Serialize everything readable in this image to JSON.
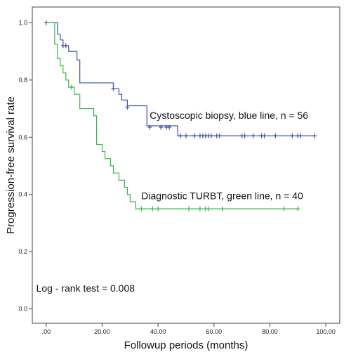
{
  "chart_data": {
    "type": "line",
    "title": "",
    "xlabel": "Followup periods (months)",
    "ylabel": "Progression-free survival rate",
    "xlim": [
      -5,
      105
    ],
    "ylim": [
      -0.05,
      1.055
    ],
    "x_ticks": [
      {
        "value": 0,
        "label": ".00"
      },
      {
        "value": 20,
        "label": "20.00"
      },
      {
        "value": 40,
        "label": "40.00"
      },
      {
        "value": 60,
        "label": "60.00"
      },
      {
        "value": 80,
        "label": "80.00"
      },
      {
        "value": 100,
        "label": "100.00"
      }
    ],
    "y_ticks": [
      {
        "value": 0,
        "label": "0.0"
      },
      {
        "value": 0.2,
        "label": "0.2"
      },
      {
        "value": 0.4,
        "label": "0.4"
      },
      {
        "value": 0.6,
        "label": "0.6"
      },
      {
        "value": 0.8,
        "label": "0.8"
      },
      {
        "value": 1.0,
        "label": "1.0"
      }
    ],
    "grid": false,
    "series": [
      {
        "color": "#3f51a5",
        "steps": [
          [
            0,
            1.0
          ],
          [
            4,
            0.96
          ],
          [
            5,
            0.94
          ],
          [
            6,
            0.92
          ],
          [
            8,
            0.9
          ],
          [
            11,
            0.87
          ],
          [
            12,
            0.79
          ],
          [
            24,
            0.77
          ],
          [
            26,
            0.75
          ],
          [
            27,
            0.73
          ],
          [
            29,
            0.71
          ],
          [
            36,
            0.64
          ],
          [
            47,
            0.605
          ],
          [
            96,
            0.605
          ]
        ],
        "censored": [
          [
            0,
            1.0
          ],
          [
            6,
            0.92
          ],
          [
            7,
            0.92
          ],
          [
            24,
            0.77
          ],
          [
            29,
            0.705
          ],
          [
            37,
            0.635
          ],
          [
            41,
            0.635
          ],
          [
            43,
            0.635
          ],
          [
            44,
            0.635
          ],
          [
            48,
            0.605
          ],
          [
            50,
            0.605
          ],
          [
            53,
            0.605
          ],
          [
            55,
            0.605
          ],
          [
            56,
            0.605
          ],
          [
            57,
            0.605
          ],
          [
            58,
            0.605
          ],
          [
            59,
            0.605
          ],
          [
            61,
            0.605
          ],
          [
            62,
            0.605
          ],
          [
            70,
            0.605
          ],
          [
            71,
            0.605
          ],
          [
            74,
            0.605
          ],
          [
            77,
            0.605
          ],
          [
            78,
            0.605
          ],
          [
            82,
            0.605
          ],
          [
            88,
            0.605
          ],
          [
            90,
            0.605
          ],
          [
            91,
            0.605
          ],
          [
            96,
            0.605
          ]
        ]
      },
      {
        "color": "#3bb34a",
        "steps": [
          [
            0,
            1.0
          ],
          [
            3,
            0.925
          ],
          [
            4,
            0.875
          ],
          [
            5,
            0.85
          ],
          [
            6,
            0.825
          ],
          [
            7,
            0.8
          ],
          [
            8,
            0.775
          ],
          [
            10,
            0.75
          ],
          [
            12,
            0.7
          ],
          [
            17,
            0.675
          ],
          [
            18,
            0.575
          ],
          [
            20,
            0.55
          ],
          [
            21,
            0.525
          ],
          [
            23,
            0.5
          ],
          [
            24,
            0.475
          ],
          [
            26,
            0.45
          ],
          [
            28,
            0.425
          ],
          [
            29,
            0.4
          ],
          [
            30,
            0.375
          ],
          [
            32,
            0.35
          ],
          [
            90,
            0.35
          ]
        ],
        "censored": [
          [
            9,
            0.775
          ],
          [
            34,
            0.35
          ],
          [
            38,
            0.35
          ],
          [
            40,
            0.35
          ],
          [
            51,
            0.35
          ],
          [
            55,
            0.35
          ],
          [
            57,
            0.35
          ],
          [
            58,
            0.35
          ],
          [
            63,
            0.35
          ],
          [
            85,
            0.35
          ],
          [
            90,
            0.35
          ]
        ]
      }
    ],
    "annotations": [
      {
        "text": "Cystoscopic biopsy, blue line, n = 56",
        "x": 37,
        "y": 0.665
      },
      {
        "text": "Diagnostic TURBT, green line, n = 40",
        "x": 34,
        "y": 0.383
      },
      {
        "text": "Log - rank test = 0.008",
        "x": -3.6,
        "y": 0.06
      }
    ]
  }
}
